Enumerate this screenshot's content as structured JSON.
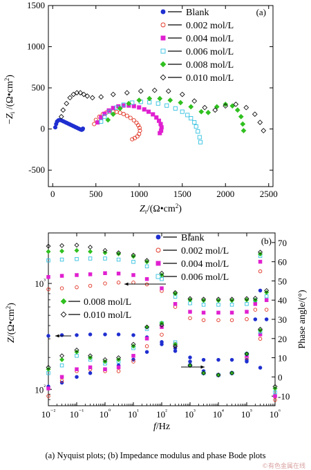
{
  "caption": "(a)  Nyquist  plots;  (b)  Impedance modulus and phase Bode plots",
  "watermark": "©有色金属在线",
  "chart_data": [
    {
      "type": "scatter",
      "panel_label": "(a)",
      "xlabel": "Zr/(Ω•cm²)",
      "ylabel": "−Zi /(Ω•cm²)",
      "xlim": [
        -50,
        2550
      ],
      "ylim": [
        -700,
        1500
      ],
      "xticks": [
        0,
        500,
        1000,
        1500,
        2000,
        2500
      ],
      "yticks": [
        -500,
        0,
        500,
        1000,
        1500
      ],
      "legend_position": "top-right",
      "series": [
        {
          "name": "Blank",
          "color": "#1f2fd0",
          "marker": "filled-circle",
          "x": [
            30,
            40,
            50,
            65,
            80,
            100,
            120,
            140,
            160,
            180,
            200,
            220,
            240,
            260,
            280,
            300,
            320,
            335,
            345,
            350
          ],
          "y": [
            20,
            60,
            90,
            105,
            110,
            105,
            95,
            85,
            75,
            65,
            55,
            45,
            35,
            25,
            15,
            5,
            -5,
            -10,
            -5,
            5
          ]
        },
        {
          "name": "0.002 mol/L",
          "color": "#e03020",
          "marker": "open-circle",
          "x": [
            480,
            500,
            540,
            580,
            620,
            660,
            700,
            740,
            780,
            820,
            860,
            900,
            940,
            970,
            990,
            1005,
            1010,
            1000,
            980,
            950,
            920
          ],
          "y": [
            60,
            110,
            150,
            180,
            200,
            210,
            212,
            208,
            198,
            182,
            160,
            135,
            105,
            75,
            45,
            15,
            -20,
            -60,
            -90,
            -110,
            -125
          ]
        },
        {
          "name": "0.004 mol/L",
          "color": "#e020d0",
          "marker": "filled-square",
          "x": [
            520,
            560,
            600,
            650,
            700,
            760,
            820,
            880,
            940,
            1000,
            1060,
            1110,
            1160,
            1200,
            1230,
            1250,
            1260,
            1255,
            1240
          ],
          "y": [
            80,
            140,
            185,
            225,
            255,
            275,
            285,
            285,
            278,
            262,
            238,
            210,
            178,
            140,
            100,
            60,
            20,
            -20,
            -50
          ]
        },
        {
          "name": "0.006 mol/L",
          "color": "#30c0e0",
          "marker": "open-square",
          "x": [
            560,
            600,
            660,
            740,
            820,
            920,
            1020,
            1120,
            1220,
            1320,
            1420,
            1500,
            1560,
            1600,
            1640,
            1660,
            1680,
            1700,
            1710
          ],
          "y": [
            90,
            150,
            210,
            260,
            295,
            320,
            330,
            325,
            310,
            285,
            250,
            210,
            170,
            130,
            80,
            30,
            -30,
            -100,
            -160
          ]
        },
        {
          "name": "0.008 mol/L",
          "color": "#30c020",
          "marker": "filled-diamond",
          "x": [
            640,
            700,
            780,
            880,
            1000,
            1120,
            1240,
            1360,
            1480,
            1600,
            1720,
            1800,
            1900,
            2000,
            2080,
            2140,
            2180,
            2200,
            2210
          ],
          "y": [
            110,
            180,
            250,
            310,
            350,
            370,
            370,
            350,
            320,
            270,
            210,
            200,
            270,
            300,
            280,
            230,
            150,
            60,
            -20
          ]
        },
        {
          "name": "0.010 mol/L",
          "color": "#111111",
          "marker": "open-diamond",
          "x": [
            100,
            120,
            160,
            200,
            240,
            280,
            320,
            360,
            400,
            460,
            560,
            700,
            860,
            1020,
            1180,
            1340,
            1500,
            1640,
            1760,
            1880,
            2000,
            2120,
            2240,
            2340,
            2400,
            2440
          ],
          "y": [
            150,
            230,
            310,
            380,
            420,
            440,
            440,
            420,
            400,
            380,
            390,
            420,
            440,
            460,
            470,
            460,
            420,
            340,
            260,
            230,
            280,
            300,
            260,
            180,
            80,
            -20
          ]
        }
      ]
    },
    {
      "type": "scatter",
      "panel_label": "(b)",
      "xlabel": "f/Hz",
      "ylabel_left": "Z/(Ω•cm²)",
      "ylabel_right": "Phase angle/(°)",
      "x_scale": "log",
      "y_left_scale": "log",
      "xlim": [
        0.01,
        1000000
      ],
      "ylim_left": [
        70,
        3000
      ],
      "ylim_right": [
        -15,
        75
      ],
      "xtick_labels": [
        "10⁻²",
        "10⁻¹",
        "10⁰",
        "10¹",
        "10²",
        "10³",
        "10⁴",
        "10⁵",
        "10⁶"
      ],
      "ytick_labels_left": [
        "10²",
        "10³"
      ],
      "yticks_right": [
        -10,
        0,
        10,
        20,
        30,
        40,
        50,
        60,
        70
      ],
      "legend_groups": [
        {
          "entries": [
            "Blank",
            "0.002 mol/L",
            "0.004 mol/L",
            "0.006 mol/L"
          ],
          "position": "top-right"
        },
        {
          "entries": [
            "0.008 mol/L",
            "0.010 mol/L"
          ],
          "position": "middle-left"
        }
      ],
      "series": [
        {
          "name": "Blank",
          "color": "#1f2fd0",
          "marker": "filled-circle",
          "modulus": {
            "f": [
              0.01,
              0.03,
              0.1,
              0.3,
              1,
              3,
              10,
              30,
              100,
              300,
              1000,
              3000,
              10000,
              30000,
              100000,
              300000
            ],
            "Z": [
              320,
              325,
              325,
              330,
              330,
              330,
              325,
              310,
              280,
              230,
              200,
              190,
              190,
              190,
              190,
              160
            ]
          },
          "phase": {
            "f": [
              0.01,
              0.03,
              0.1,
              0.3,
              1,
              3,
              10,
              30,
              100,
              300,
              1000,
              3000,
              10000,
              30000,
              100000,
              200000,
              300000,
              500000,
              1000000
            ],
            "deg": [
              -5,
              -3,
              0,
              2,
              4,
              6,
              9,
              13,
              17,
              15,
              8,
              3,
              1,
              2,
              8,
              30,
              45,
              30,
              -10
            ]
          }
        },
        {
          "name": "0.002 mol/L",
          "color": "#e03020",
          "marker": "open-circle",
          "modulus": {
            "f": [
              0.01,
              0.03,
              0.1,
              0.3,
              1,
              3,
              10,
              30,
              100,
              300,
              1000,
              3000,
              10000,
              30000,
              100000,
              300000
            ],
            "Z": [
              880,
              900,
              920,
              950,
              1000,
              1020,
              1020,
              980,
              850,
              600,
              470,
              450,
              450,
              450,
              460,
              300
            ]
          },
          "phase": {
            "f": [
              0.01,
              0.03,
              0.1,
              0.3,
              1,
              3,
              10,
              30,
              100,
              300,
              1000,
              3000,
              10000,
              30000,
              100000,
              200000,
              300000,
              500000,
              1000000
            ],
            "deg": [
              -10,
              -2,
              3,
              4,
              3,
              3,
              8,
              16,
              22,
              16,
              6,
              2,
              1,
              2,
              10,
              35,
              55,
              35,
              -12
            ]
          }
        },
        {
          "name": "0.004 mol/L",
          "color": "#e020d0",
          "marker": "filled-square",
          "modulus": {
            "f": [
              0.01,
              0.03,
              0.1,
              0.3,
              1,
              3,
              10,
              30,
              100,
              300,
              1000,
              3000,
              10000,
              30000,
              100000,
              300000
            ],
            "Z": [
              1150,
              1180,
              1200,
              1220,
              1250,
              1240,
              1200,
              1100,
              900,
              640,
              540,
              530,
              530,
              530,
              540,
              330
            ]
          },
          "phase": {
            "f": [
              0.01,
              0.03,
              0.1,
              0.3,
              1,
              3,
              10,
              30,
              100,
              300,
              1000,
              3000,
              10000,
              30000,
              100000,
              200000,
              300000,
              500000,
              1000000
            ],
            "deg": [
              -6,
              0,
              4,
              5,
              4,
              5,
              11,
              20,
              26,
              17,
              6,
              2,
              1,
              2,
              11,
              38,
              60,
              40,
              -10
            ]
          }
        },
        {
          "name": "0.006 mol/L",
          "color": "#30c0e0",
          "marker": "open-square",
          "modulus": {
            "f": [
              0.01,
              0.03,
              0.1,
              0.3,
              1,
              3,
              10,
              30,
              100,
              300,
              1000,
              3000,
              10000,
              30000,
              100000,
              300000
            ],
            "Z": [
              1650,
              1680,
              1700,
              1720,
              1720,
              1680,
              1600,
              1450,
              1100,
              750,
              650,
              630,
              630,
              630,
              640,
              350
            ]
          },
          "phase": {
            "f": [
              0.01,
              0.03,
              0.1,
              0.3,
              1,
              3,
              10,
              30,
              100,
              300,
              1000,
              3000,
              10000,
              30000,
              100000,
              200000,
              300000,
              500000,
              1000000
            ],
            "deg": [
              2,
              6,
              11,
              9,
              7,
              8,
              15,
              25,
              28,
              18,
              6,
              2,
              1,
              2,
              12,
              40,
              63,
              42,
              -8
            ]
          }
        },
        {
          "name": "0.008 mol/L",
          "color": "#30c020",
          "marker": "filled-diamond",
          "modulus": {
            "f": [
              0.01,
              0.03,
              0.1,
              0.3,
              1,
              3,
              10,
              30,
              100,
              300,
              1000,
              3000,
              10000,
              30000,
              100000,
              300000
            ],
            "Z": [
              2000,
              2020,
              2050,
              2000,
              1950,
              1900,
              1800,
              1600,
              1200,
              800,
              700,
              690,
              690,
              690,
              700,
              360
            ]
          },
          "phase": {
            "f": [
              0.01,
              0.03,
              0.1,
              0.3,
              1,
              3,
              10,
              30,
              100,
              300,
              1000,
              3000,
              10000,
              30000,
              100000,
              200000,
              300000,
              500000,
              1000000
            ],
            "deg": [
              4,
              9,
              13,
              10,
              8,
              9,
              16,
              26,
              28,
              17,
              6,
              2,
              1,
              2,
              12,
              40,
              64,
              44,
              -6
            ]
          }
        },
        {
          "name": "0.010 mol/L",
          "color": "#111111",
          "marker": "open-diamond",
          "modulus": {
            "f": [
              0.01,
              0.03,
              0.1,
              0.3,
              1,
              3,
              10,
              30,
              100,
              300,
              1000,
              3000,
              10000,
              30000,
              100000,
              300000
            ],
            "Z": [
              2250,
              2280,
              2300,
              2200,
              2050,
              1950,
              1850,
              1650,
              1250,
              820,
              720,
              710,
              710,
              710,
              720,
              370
            ]
          },
          "phase": {
            "f": [
              0.01,
              0.03,
              0.1,
              0.3,
              1,
              3,
              10,
              30,
              100,
              300,
              1000,
              3000,
              10000,
              30000,
              100000,
              200000,
              300000,
              500000,
              1000000
            ],
            "deg": [
              5,
              11,
              14,
              11,
              9,
              10,
              17,
              26,
              27,
              16,
              6,
              2,
              1,
              2,
              12,
              41,
              65,
              45,
              -5
            ]
          }
        }
      ]
    }
  ]
}
